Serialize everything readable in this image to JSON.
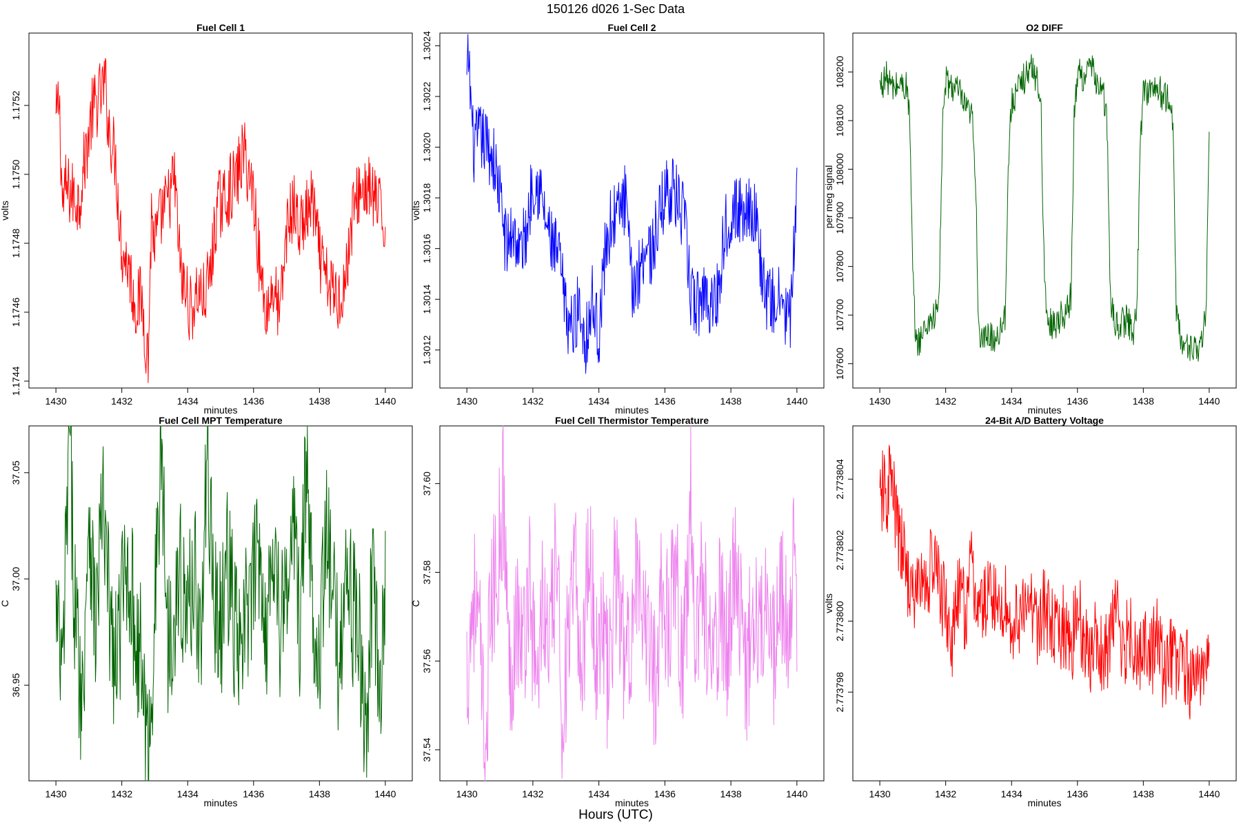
{
  "figure": {
    "suptitle": "150126   d026   1-Sec Data",
    "bottom_label": "Hours (UTC)"
  },
  "chart_data": [
    {
      "type": "line",
      "title": "Fuel Cell 1",
      "xlabel": "minutes",
      "ylabel": "volts",
      "color": "#ff0000",
      "xlim": [
        1429.6,
        1440.4
      ],
      "ylim": [
        1.17438,
        1.17541
      ],
      "xticks": [
        1430,
        1432,
        1434,
        1436,
        1438,
        1440
      ],
      "xtick_labels": [
        "1430",
        "1432",
        "1434",
        "1436",
        "1438",
        "1440"
      ],
      "yticks": [
        1.1744,
        1.1746,
        1.1748,
        1.175,
        1.1752
      ],
      "ytick_labels": [
        "1.1744",
        "1.1746",
        "1.1748",
        "1.1750",
        "1.1752"
      ],
      "series": [
        {
          "name": "Fuel Cell 1",
          "x": [
            1430.0,
            1430.1,
            1430.2,
            1430.3,
            1430.5,
            1430.7,
            1430.8,
            1431.0,
            1431.1,
            1431.3,
            1431.5,
            1431.6,
            1431.8,
            1432.0,
            1432.2,
            1432.4,
            1432.6,
            1432.8,
            1432.9,
            1433.0,
            1433.2,
            1433.4,
            1433.6,
            1433.8,
            1434.0,
            1434.1,
            1434.3,
            1434.5,
            1434.7,
            1434.9,
            1435.1,
            1435.3,
            1435.5,
            1435.7,
            1435.9,
            1436.0,
            1436.2,
            1436.4,
            1436.6,
            1436.8,
            1437.0,
            1437.2,
            1437.4,
            1437.6,
            1437.8,
            1438.0,
            1438.2,
            1438.4,
            1438.6,
            1438.8,
            1439.0,
            1439.2,
            1439.4,
            1439.6,
            1439.8,
            1440.0
          ],
          "y": [
            1.17515,
            1.17522,
            1.17491,
            1.17496,
            1.17494,
            1.17492,
            1.17499,
            1.17512,
            1.17518,
            1.17522,
            1.17526,
            1.17514,
            1.17505,
            1.17478,
            1.17474,
            1.17462,
            1.17464,
            1.17446,
            1.17488,
            1.1748,
            1.17488,
            1.17492,
            1.17499,
            1.1747,
            1.17464,
            1.1746,
            1.17466,
            1.17464,
            1.17472,
            1.17491,
            1.17492,
            1.17496,
            1.17499,
            1.17507,
            1.17498,
            1.17495,
            1.17472,
            1.1746,
            1.17468,
            1.17458,
            1.17484,
            1.17491,
            1.17484,
            1.17488,
            1.17492,
            1.17476,
            1.17469,
            1.17466,
            1.17464,
            1.1747,
            1.17488,
            1.17495,
            1.17496,
            1.17494,
            1.1749,
            1.17484
          ]
        }
      ]
    },
    {
      "type": "line",
      "title": "Fuel Cell 2",
      "xlabel": "minutes",
      "ylabel": "volts",
      "color": "#0000ff",
      "xlim": [
        1429.6,
        1440.4
      ],
      "ylim": [
        1.30105,
        1.30245
      ],
      "xticks": [
        1430,
        1432,
        1434,
        1436,
        1438,
        1440
      ],
      "xtick_labels": [
        "1430",
        "1432",
        "1434",
        "1436",
        "1438",
        "1440"
      ],
      "yticks": [
        1.3012,
        1.3014,
        1.3016,
        1.3018,
        1.302,
        1.3022,
        1.3024
      ],
      "ytick_labels": [
        "1.3012",
        "1.3014",
        "1.3016",
        "1.3018",
        "1.3020",
        "1.3022",
        "1.3024"
      ],
      "series": [
        {
          "name": "Fuel Cell 2",
          "x": [
            1430.0,
            1430.05,
            1430.2,
            1430.4,
            1430.6,
            1430.8,
            1431.0,
            1431.2,
            1431.4,
            1431.6,
            1431.8,
            1432.0,
            1432.2,
            1432.4,
            1432.6,
            1432.8,
            1433.0,
            1433.2,
            1433.4,
            1433.6,
            1433.8,
            1434.0,
            1434.2,
            1434.4,
            1434.6,
            1434.8,
            1435.0,
            1435.2,
            1435.4,
            1435.6,
            1435.8,
            1436.0,
            1436.2,
            1436.4,
            1436.6,
            1436.8,
            1437.0,
            1437.2,
            1437.4,
            1437.6,
            1437.8,
            1438.0,
            1438.2,
            1438.4,
            1438.6,
            1438.8,
            1439.0,
            1439.2,
            1439.4,
            1439.6,
            1439.8,
            1440.0
          ],
          "y": [
            1.30224,
            1.30236,
            1.30199,
            1.30204,
            1.30201,
            1.30196,
            1.30181,
            1.3016,
            1.30168,
            1.30158,
            1.30166,
            1.30188,
            1.30184,
            1.3017,
            1.3016,
            1.30156,
            1.30134,
            1.30128,
            1.30138,
            1.30124,
            1.3014,
            1.30126,
            1.3016,
            1.30172,
            1.30174,
            1.3018,
            1.30144,
            1.3015,
            1.30162,
            1.30158,
            1.3017,
            1.30182,
            1.30184,
            1.30178,
            1.3017,
            1.3014,
            1.30138,
            1.30144,
            1.30138,
            1.30142,
            1.30166,
            1.30176,
            1.30174,
            1.30176,
            1.30178,
            1.30168,
            1.30144,
            1.30138,
            1.3014,
            1.30136,
            1.30132,
            1.30178
          ]
        }
      ]
    },
    {
      "type": "line",
      "title": "O2 DIFF",
      "xlabel": "minutes",
      "ylabel": "per meg signal",
      "color": "#006400",
      "xlim": [
        1429.6,
        1440.4
      ],
      "ylim": [
        107550,
        108280
      ],
      "xticks": [
        1430,
        1432,
        1434,
        1436,
        1438,
        1440
      ],
      "xtick_labels": [
        "1430",
        "1432",
        "1434",
        "1436",
        "1438",
        "1440"
      ],
      "yticks": [
        107600,
        107700,
        107800,
        107900,
        108000,
        108100,
        108200
      ],
      "ytick_labels": [
        "107600",
        "107700",
        "107800",
        "107900",
        "108000",
        "108100",
        "108200"
      ],
      "series": [
        {
          "name": "O2 DIFF",
          "x": [
            1430.0,
            1430.2,
            1430.4,
            1430.6,
            1430.8,
            1430.9,
            1431.0,
            1431.1,
            1431.3,
            1431.5,
            1431.7,
            1431.8,
            1431.9,
            1432.0,
            1432.2,
            1432.4,
            1432.6,
            1432.8,
            1432.9,
            1433.0,
            1433.1,
            1433.3,
            1433.5,
            1433.7,
            1433.8,
            1433.9,
            1434.0,
            1434.2,
            1434.4,
            1434.6,
            1434.8,
            1434.9,
            1435.0,
            1435.1,
            1435.3,
            1435.5,
            1435.7,
            1435.8,
            1435.9,
            1436.0,
            1436.2,
            1436.4,
            1436.6,
            1436.8,
            1436.9,
            1437.0,
            1437.1,
            1437.3,
            1437.5,
            1437.7,
            1437.8,
            1437.9,
            1438.0,
            1438.2,
            1438.4,
            1438.6,
            1438.8,
            1438.9,
            1439.0,
            1439.1,
            1439.3,
            1439.5,
            1439.7,
            1439.8,
            1439.9,
            1440.0
          ],
          "y": [
            108170,
            108190,
            108165,
            108175,
            108170,
            108120,
            107780,
            107640,
            107660,
            107690,
            107700,
            107730,
            108080,
            108180,
            108170,
            108160,
            108120,
            108110,
            108000,
            107680,
            107640,
            107660,
            107650,
            107680,
            107700,
            108000,
            108140,
            108160,
            108190,
            108210,
            108180,
            108120,
            107750,
            107690,
            107680,
            107700,
            107710,
            107740,
            108100,
            108200,
            108190,
            108210,
            108180,
            108150,
            108090,
            107730,
            107690,
            107680,
            107690,
            107670,
            107700,
            108030,
            108170,
            108160,
            108170,
            108150,
            108140,
            108090,
            107720,
            107660,
            107630,
            107640,
            107620,
            107650,
            107700,
            108080
          ]
        }
      ]
    },
    {
      "type": "line",
      "title": "Fuel Cell MPT Temperature",
      "xlabel": "minutes",
      "ylabel": "C",
      "color": "#006400",
      "xlim": [
        1429.6,
        1440.4
      ],
      "ylim": [
        36.905,
        37.072
      ],
      "xticks": [
        1430,
        1432,
        1434,
        1436,
        1438,
        1440
      ],
      "xtick_labels": [
        "1430",
        "1432",
        "1434",
        "1436",
        "1438",
        "1440"
      ],
      "yticks": [
        36.95,
        37.0,
        37.05
      ],
      "ytick_labels": [
        "36.95",
        "37.00",
        "37.05"
      ],
      "series": [
        {
          "name": "Fuel Cell MPT Temperature",
          "x": [
            1430.0,
            1430.2,
            1430.4,
            1430.6,
            1430.8,
            1431.0,
            1431.2,
            1431.4,
            1431.6,
            1431.8,
            1432.0,
            1432.2,
            1432.4,
            1432.6,
            1432.8,
            1433.0,
            1433.2,
            1433.4,
            1433.6,
            1433.8,
            1434.0,
            1434.2,
            1434.4,
            1434.6,
            1434.8,
            1435.0,
            1435.2,
            1435.4,
            1435.6,
            1435.8,
            1436.0,
            1436.2,
            1436.4,
            1436.6,
            1436.8,
            1437.0,
            1437.2,
            1437.4,
            1437.6,
            1437.8,
            1438.0,
            1438.2,
            1438.4,
            1438.6,
            1438.8,
            1439.0,
            1439.2,
            1439.4,
            1439.6,
            1439.8,
            1440.0
          ],
          "y": [
            36.982,
            36.95,
            37.066,
            36.98,
            36.941,
            37.038,
            36.975,
            37.035,
            36.99,
            36.955,
            36.988,
            37.01,
            36.975,
            36.96,
            36.912,
            36.985,
            37.064,
            36.97,
            36.99,
            37.0,
            36.98,
            37.01,
            36.965,
            37.06,
            36.99,
            36.975,
            37.01,
            36.98,
            36.96,
            36.985,
            36.995,
            37.02,
            36.97,
            37.025,
            36.98,
            36.99,
            37.03,
            36.975,
            37.055,
            36.985,
            36.97,
            37.02,
            36.99,
            36.96,
            37.01,
            36.985,
            36.975,
            36.92,
            37.0,
            36.945,
            36.992
          ]
        }
      ]
    },
    {
      "type": "line",
      "title": "Fuel Cell Thermistor Temperature",
      "xlabel": "minutes",
      "ylabel": "C",
      "color": "#ee82ee",
      "xlim": [
        1429.6,
        1440.4
      ],
      "ylim": [
        37.533,
        37.613
      ],
      "xticks": [
        1430,
        1432,
        1434,
        1436,
        1438,
        1440
      ],
      "xtick_labels": [
        "1430",
        "1432",
        "1434",
        "1436",
        "1438",
        "1440"
      ],
      "yticks": [
        37.54,
        37.56,
        37.58,
        37.6
      ],
      "ytick_labels": [
        "37.54",
        "37.56",
        "37.58",
        "37.60"
      ],
      "series": [
        {
          "name": "Fuel Cell Thermistor Temperature",
          "x": [
            1430.0,
            1430.2,
            1430.4,
            1430.55,
            1430.7,
            1430.9,
            1431.1,
            1431.3,
            1431.5,
            1431.7,
            1431.9,
            1432.1,
            1432.3,
            1432.5,
            1432.7,
            1432.9,
            1433.1,
            1433.3,
            1433.5,
            1433.7,
            1433.9,
            1434.1,
            1434.3,
            1434.5,
            1434.7,
            1434.9,
            1435.1,
            1435.3,
            1435.5,
            1435.7,
            1435.9,
            1436.1,
            1436.3,
            1436.5,
            1436.7,
            1436.75,
            1436.9,
            1437.1,
            1437.3,
            1437.5,
            1437.7,
            1437.9,
            1438.1,
            1438.3,
            1438.5,
            1438.7,
            1438.9,
            1439.1,
            1439.3,
            1439.5,
            1439.7,
            1439.9,
            1440.0
          ],
          "y": [
            37.557,
            37.576,
            37.562,
            37.536,
            37.57,
            37.58,
            37.598,
            37.555,
            37.572,
            37.562,
            37.58,
            37.552,
            37.575,
            37.56,
            37.583,
            37.548,
            37.566,
            37.578,
            37.556,
            37.59,
            37.56,
            37.572,
            37.552,
            37.582,
            37.565,
            37.558,
            37.585,
            37.562,
            37.57,
            37.555,
            37.578,
            37.566,
            37.587,
            37.56,
            37.575,
            37.61,
            37.56,
            37.58,
            37.566,
            37.556,
            37.575,
            37.562,
            37.583,
            37.568,
            37.558,
            37.576,
            37.565,
            37.584,
            37.56,
            37.575,
            37.566,
            37.582,
            37.562
          ]
        }
      ]
    },
    {
      "type": "line",
      "title": "24-Bit A/D Battery Voltage",
      "xlabel": "minutes",
      "ylabel": "volts",
      "color": "#ff0000",
      "xlim": [
        1429.6,
        1440.4
      ],
      "ylim": [
        2.7737955,
        2.7738055
      ],
      "xticks": [
        1430,
        1432,
        1434,
        1436,
        1438,
        1440
      ],
      "xtick_labels": [
        "1430",
        "1432",
        "1434",
        "1436",
        "1438",
        "1440"
      ],
      "yticks": [
        2.773798,
        2.7738,
        2.773802,
        2.773804
      ],
      "ytick_labels": [
        "2.773798",
        "2.773800",
        "2.773802",
        "2.773804"
      ],
      "series": [
        {
          "name": "24-Bit A/D Battery Voltage",
          "x": [
            1430.0,
            1430.1,
            1430.2,
            1430.3,
            1430.4,
            1430.5,
            1430.6,
            1430.8,
            1431.0,
            1431.2,
            1431.4,
            1431.6,
            1431.8,
            1432.0,
            1432.2,
            1432.4,
            1432.6,
            1432.8,
            1433.0,
            1433.2,
            1433.4,
            1433.6,
            1433.8,
            1434.0,
            1434.2,
            1434.4,
            1434.6,
            1434.8,
            1435.0,
            1435.2,
            1435.4,
            1435.6,
            1435.8,
            1436.0,
            1436.2,
            1436.4,
            1436.6,
            1436.8,
            1437.0,
            1437.2,
            1437.4,
            1437.6,
            1437.8,
            1438.0,
            1438.2,
            1438.4,
            1438.6,
            1438.8,
            1439.0,
            1439.2,
            1439.4,
            1439.6,
            1439.8,
            1440.0
          ],
          "y": [
            2.773803,
            2.7738038,
            2.7738032,
            2.7738042,
            2.7738036,
            2.7738028,
            2.7738022,
            2.7738016,
            2.7738005,
            2.7738012,
            2.7738009,
            2.7738018,
            2.773801,
            2.7738004,
            2.7737994,
            2.7738008,
            2.7738003,
            2.7738015,
            2.7738002,
            2.7738005,
            2.773801,
            2.7738001,
            2.7738007,
            2.7737996,
            2.7738003,
            2.7738,
            2.7738006,
            2.7737999,
            2.7738004,
            2.7737998,
            2.7737994,
            2.7737999,
            2.7737993,
            2.7738002,
            2.7737996,
            2.773799,
            2.7737996,
            2.7737988,
            2.7737996,
            2.7738002,
            2.7737992,
            2.7737998,
            2.773799,
            2.7737995,
            2.7737988,
            2.7737996,
            2.7737986,
            2.7737992,
            2.7737985,
            2.7737989,
            2.7737984,
            2.7737988,
            2.7737982,
            2.7737986
          ]
        }
      ]
    }
  ]
}
